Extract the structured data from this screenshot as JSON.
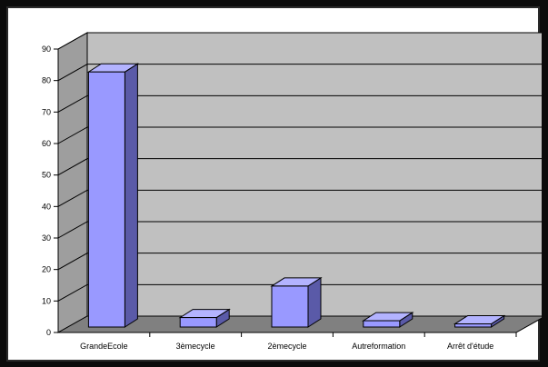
{
  "chart_data": {
    "type": "bar",
    "title": "",
    "xlabel": "",
    "ylabel": "",
    "categories": [
      "GrandeEcole",
      "3èmecycle",
      "2èmecycle",
      "Autreformation",
      "Arrêt d'étude"
    ],
    "values": [
      81,
      3,
      13,
      2,
      1
    ],
    "ylim": [
      0,
      90
    ],
    "yticks": [
      "0",
      "10",
      "20",
      "30",
      "40",
      "50",
      "60",
      "70",
      "80",
      "90"
    ],
    "grid": true,
    "legend": "none",
    "colors": {
      "bar_front": "#9999ff",
      "bar_side": "#5a5aa8",
      "bar_top": "#b3b3ff",
      "back_wall": "#c0c0c0",
      "side_wall": "#9e9e9e",
      "floor": "#808080",
      "gridline": "#000000"
    }
  }
}
